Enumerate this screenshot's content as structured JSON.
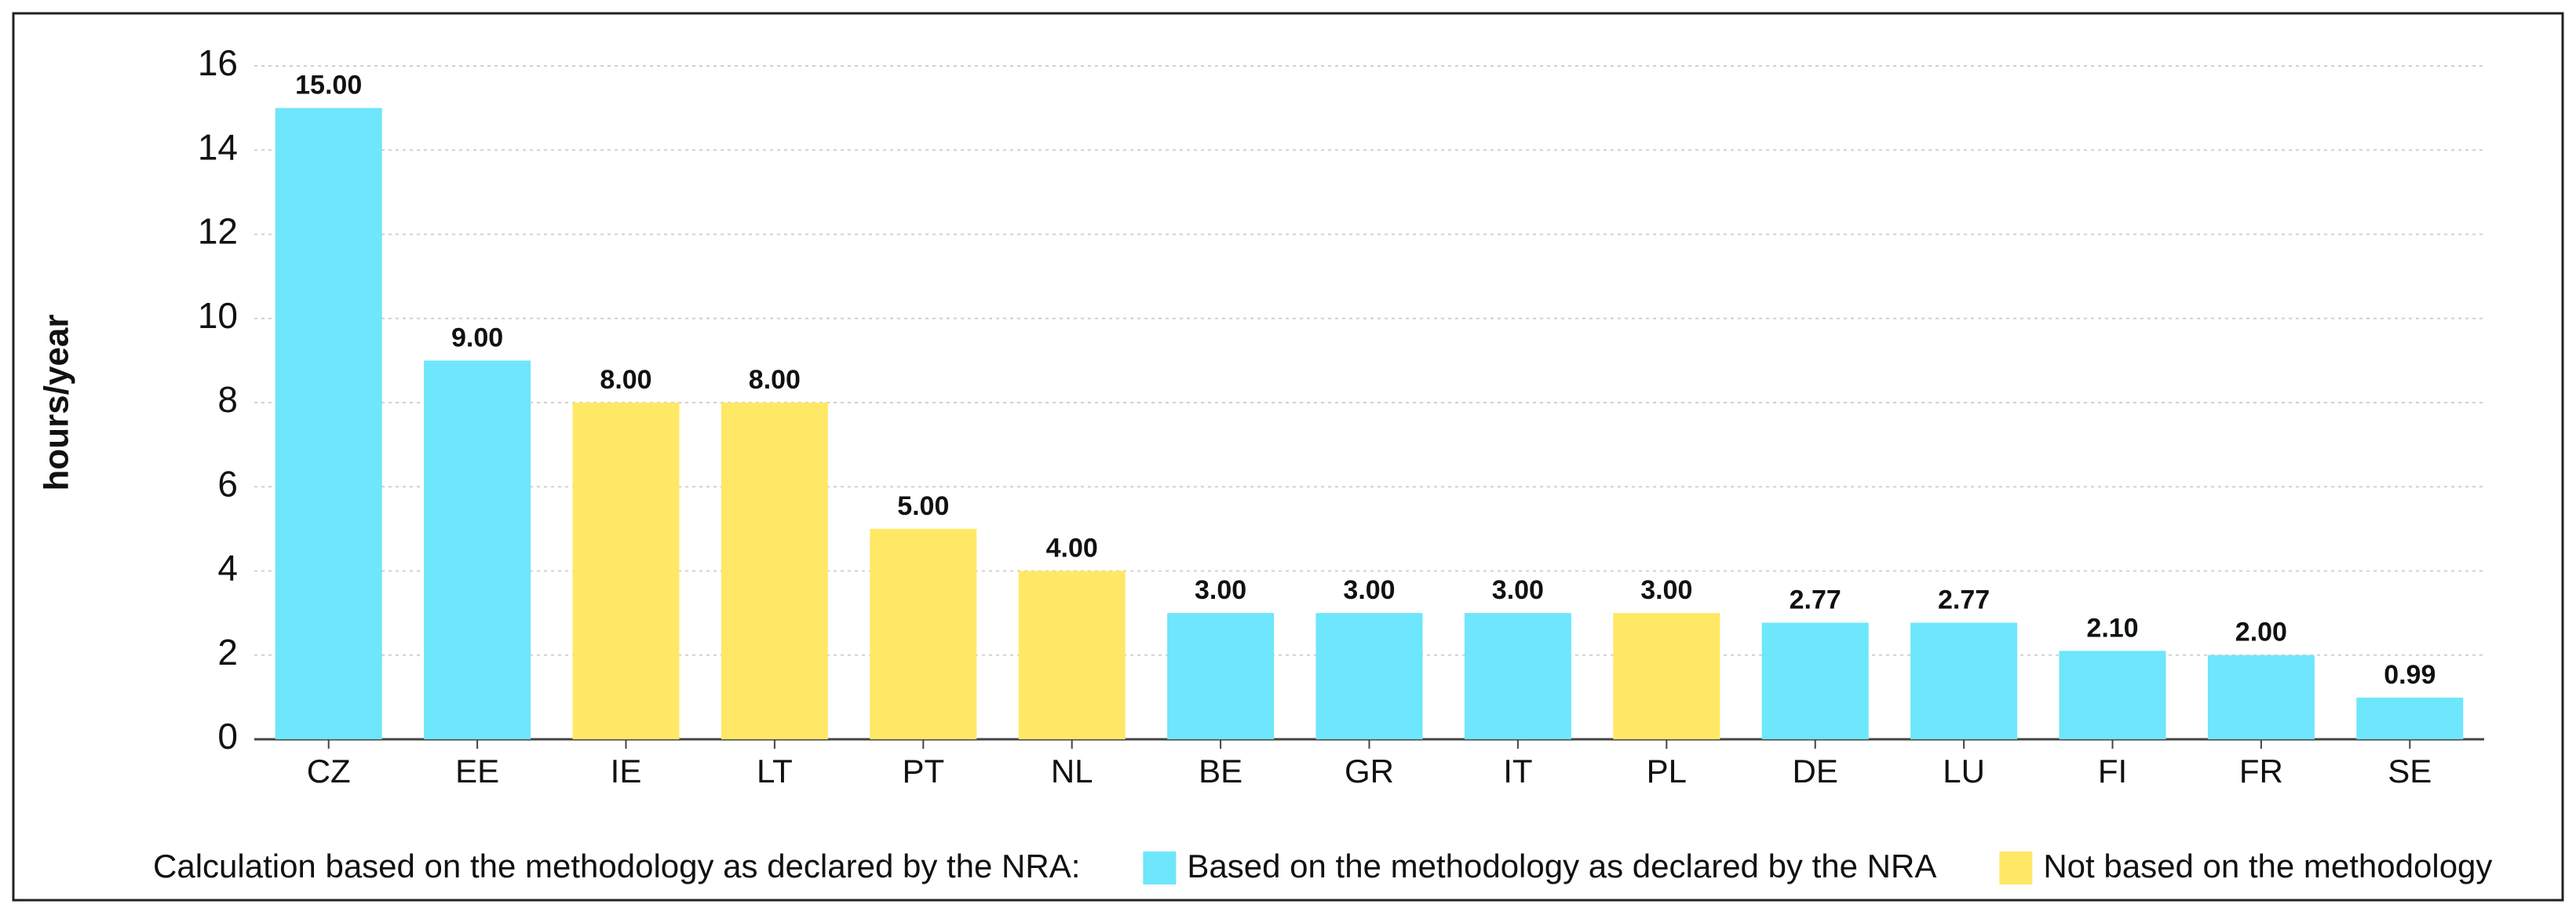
{
  "chart_data": {
    "type": "bar",
    "y_label": "hours/year",
    "categories": [
      "CZ",
      "EE",
      "IE",
      "LT",
      "PT",
      "NL",
      "BE",
      "GR",
      "IT",
      "PL",
      "DE",
      "LU",
      "FI",
      "FR",
      "SE"
    ],
    "legend_title": "Calculation based on the methodology as declared by the NRA:",
    "series": [
      {
        "name": "Based on the methodology as declared by the NRA",
        "color": "#6ee6fb",
        "values": [
          15,
          9,
          null,
          null,
          null,
          null,
          3,
          3,
          3,
          null,
          2.77,
          2.77,
          2.1,
          2,
          0.99
        ],
        "value_labels": [
          "15.00",
          "9.00",
          null,
          null,
          null,
          null,
          "3.00",
          "3.00",
          "3.00",
          null,
          "2.77",
          "2.77",
          "2.10",
          "2.00",
          "0.99"
        ]
      },
      {
        "name": "Not based on the methodology",
        "color": "#ffe866",
        "values": [
          null,
          null,
          8,
          8,
          5,
          4,
          null,
          null,
          null,
          3,
          null,
          null,
          null,
          null,
          null
        ],
        "value_labels": [
          null,
          null,
          "8.00",
          "8.00",
          "5.00",
          "4.00",
          null,
          null,
          null,
          "3.00",
          null,
          null,
          null,
          null,
          null
        ]
      }
    ],
    "ylim": [
      0,
      16
    ],
    "yticks": [
      0,
      2,
      4,
      6,
      8,
      10,
      12,
      14,
      16
    ],
    "grid": true,
    "legend": "bottom"
  }
}
